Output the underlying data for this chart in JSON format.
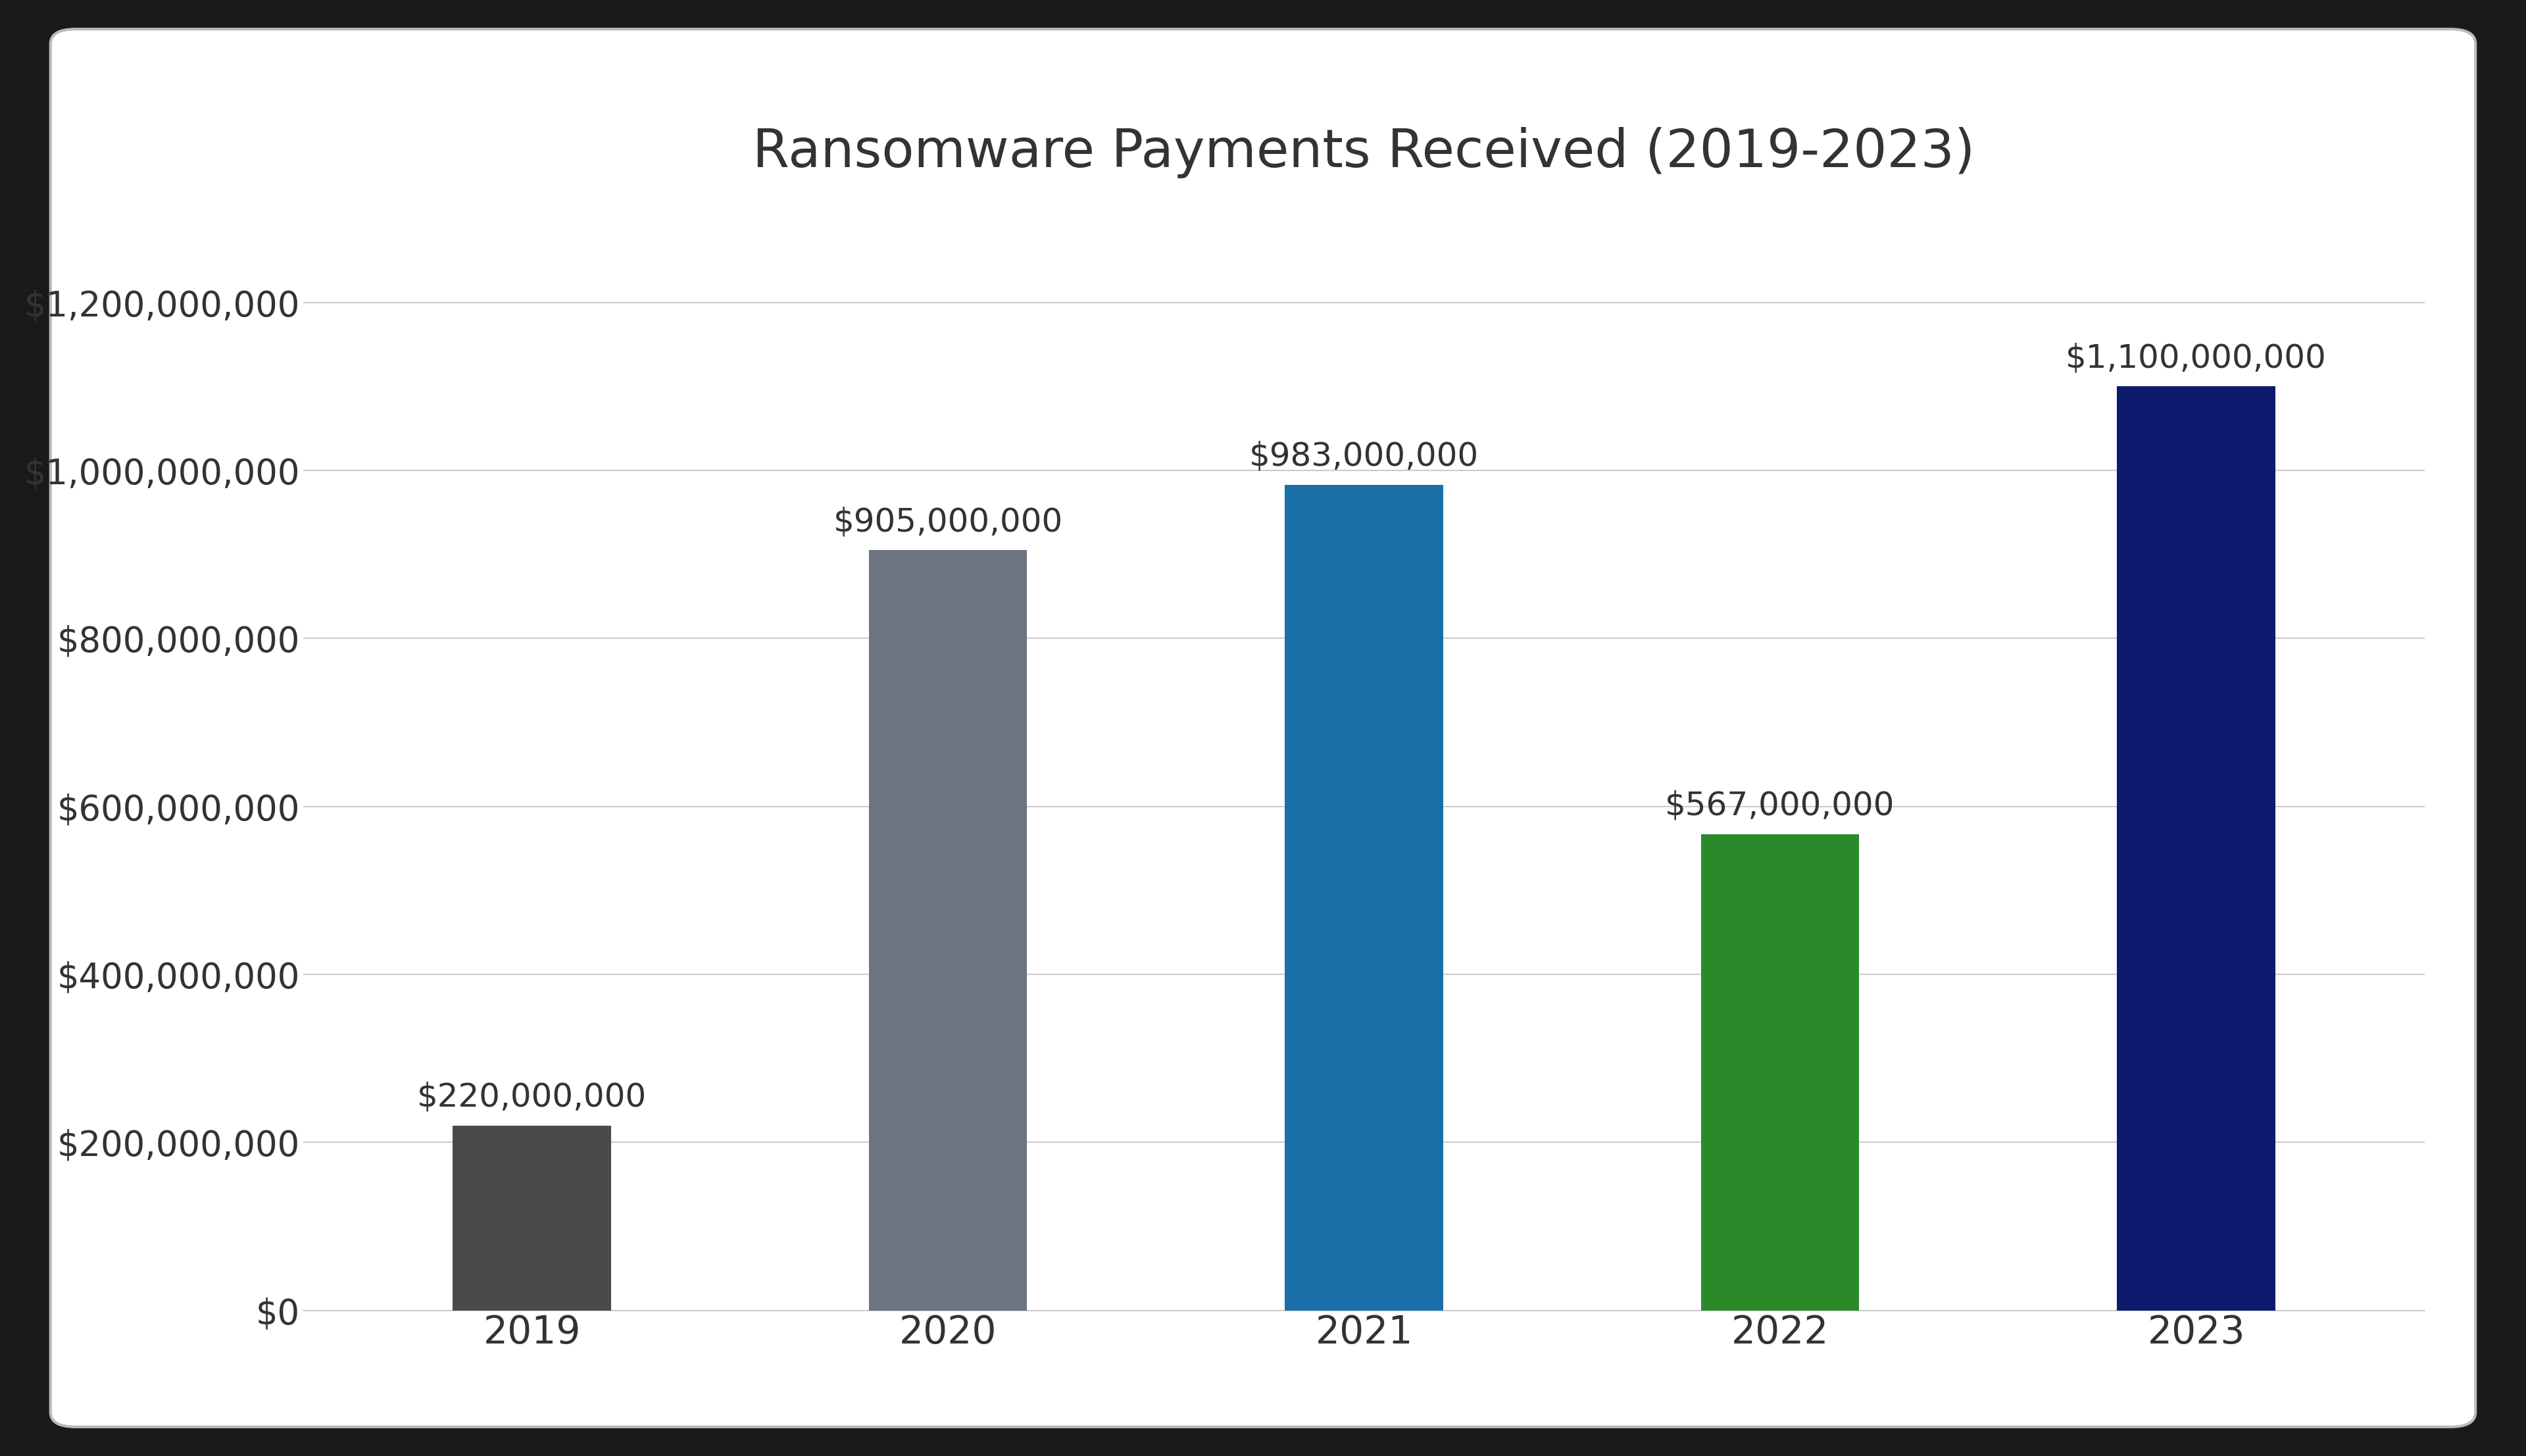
{
  "title": "Ransomware Payments Received (2019-2023)",
  "categories": [
    "2019",
    "2020",
    "2021",
    "2022",
    "2023"
  ],
  "values": [
    220000000,
    905000000,
    983000000,
    567000000,
    1100000000
  ],
  "bar_colors": [
    "#4a4a4a",
    "#6b7480",
    "#1a6fa8",
    "#2a8a2a",
    "#0d1a6e"
  ],
  "bar_labels": [
    "$220,000,000",
    "$905,000,000",
    "$983,000,000",
    "$567,000,000",
    "$1,100,000,000"
  ],
  "ylim": [
    0,
    1300000000
  ],
  "yticks": [
    0,
    200000000,
    400000000,
    600000000,
    800000000,
    1000000000,
    1200000000
  ],
  "ytick_labels": [
    "$0",
    "$200,000,000",
    "$400,000,000",
    "$600,000,000",
    "$800,000,000",
    "$1,000,000,000",
    "$1,200,000,000"
  ],
  "background_color": "#ffffff",
  "title_fontsize": 58,
  "tick_fontsize": 38,
  "label_fontsize": 36,
  "bar_width": 0.38,
  "grid_color": "#cccccc",
  "text_color": "#333333",
  "outer_bg": "#1a1a1a",
  "card_bg": "#ffffff",
  "card_edge": "#bbbbbb"
}
